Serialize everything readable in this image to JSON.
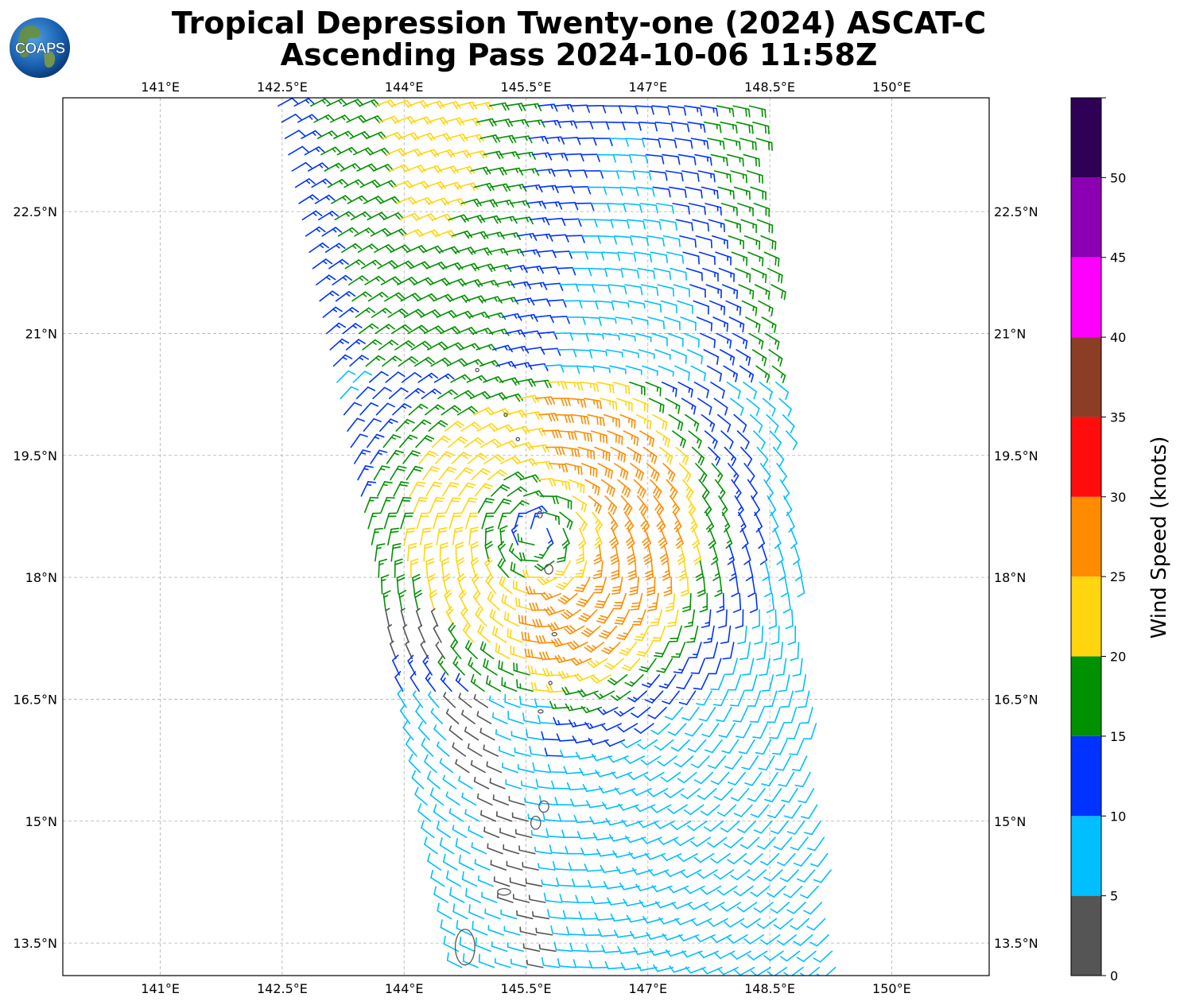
{
  "title": {
    "line1": "Tropical Depression Twenty-one (2024) ASCAT-C",
    "line2": "Ascending Pass 2024-10-06 11:58Z"
  },
  "logo": {
    "text": "COAPS",
    "icon": "globe-logo-icon"
  },
  "map": {
    "projection": "PlateCarree",
    "lon_range": [
      139.8,
      151.2
    ],
    "lat_range": [
      13.1,
      23.9
    ],
    "gridlines": "dashed",
    "lon_ticks": [
      141,
      142.5,
      144,
      145.5,
      147,
      148.5,
      150
    ],
    "lat_ticks": [
      13.5,
      15,
      16.5,
      18,
      19.5,
      21,
      22.5
    ],
    "lon_labels": [
      "141°E",
      "142.5°E",
      "144°E",
      "145.5°E",
      "147°E",
      "148.5°E",
      "150°E"
    ],
    "lat_labels": [
      "13.5°N",
      "15°N",
      "16.5°N",
      "18°N",
      "19.5°N",
      "21°N",
      "22.5°N"
    ],
    "coast_color": "#555555",
    "islands": [
      {
        "lon": 144.75,
        "lat": 13.45,
        "rx": 0.12,
        "ry": 0.22
      },
      {
        "lon": 145.23,
        "lat": 14.13,
        "rx": 0.08,
        "ry": 0.04
      },
      {
        "lon": 145.62,
        "lat": 14.98,
        "rx": 0.06,
        "ry": 0.08
      },
      {
        "lon": 145.72,
        "lat": 15.18,
        "rx": 0.06,
        "ry": 0.07
      },
      {
        "lon": 145.68,
        "lat": 16.35,
        "rx": 0.03,
        "ry": 0.02
      },
      {
        "lon": 145.8,
        "lat": 16.7,
        "rx": 0.02,
        "ry": 0.02
      },
      {
        "lon": 145.85,
        "lat": 17.3,
        "rx": 0.03,
        "ry": 0.02
      },
      {
        "lon": 145.78,
        "lat": 18.1,
        "rx": 0.05,
        "ry": 0.06
      },
      {
        "lon": 145.67,
        "lat": 18.77,
        "rx": 0.03,
        "ry": 0.04
      },
      {
        "lon": 144.9,
        "lat": 20.55,
        "rx": 0.02,
        "ry": 0.02
      },
      {
        "lon": 145.25,
        "lat": 20.0,
        "rx": 0.02,
        "ry": 0.02
      },
      {
        "lon": 145.4,
        "lat": 19.7,
        "rx": 0.02,
        "ry": 0.02
      }
    ]
  },
  "swath": {
    "corners": [
      [
        142.35,
        23.9
      ],
      [
        148.35,
        23.9
      ],
      [
        149.45,
        13.1
      ],
      [
        144.65,
        13.1
      ]
    ],
    "center": {
      "lon": 145.6,
      "lat": 18.6
    },
    "spacing_deg": 0.125
  },
  "colorbar": {
    "label": "Wind Speed (knots)",
    "boundaries": [
      0,
      5,
      10,
      15,
      20,
      25,
      30,
      35,
      40,
      45,
      50,
      55
    ],
    "tick_values": [
      0,
      5,
      10,
      15,
      20,
      25,
      30,
      35,
      40,
      45,
      50
    ],
    "tick_labels": [
      "0",
      "5",
      "10",
      "15",
      "20",
      "25",
      "30",
      "35",
      "40",
      "45",
      "50"
    ],
    "colors": [
      "#555555",
      "#00bfff",
      "#0033ff",
      "#009100",
      "#ffd50f",
      "#ff8c00",
      "#ff0d0d",
      "#8b3d26",
      "#ff00ff",
      "#8b00b3",
      "#2e0056"
    ]
  }
}
